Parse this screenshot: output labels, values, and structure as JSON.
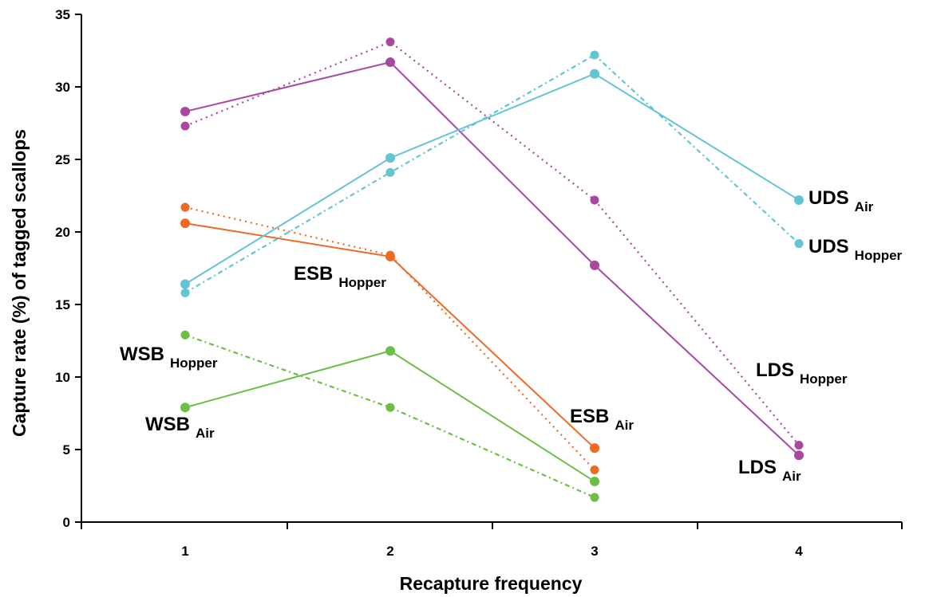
{
  "chart_data": {
    "type": "line",
    "title": "",
    "xlabel": "Recapture frequency",
    "ylabel": "Capture rate (%) of tagged scallops",
    "x": [
      1,
      2,
      3,
      4
    ],
    "x_tick_labels": [
      "1",
      "2",
      "3",
      "4"
    ],
    "ylim": [
      0,
      35
    ],
    "y_ticks": [
      0,
      5,
      10,
      15,
      20,
      25,
      30,
      35
    ],
    "grid": false,
    "legend": "none",
    "series": [
      {
        "name": "WSB Air",
        "group": "WSB",
        "sub": "Air",
        "values": [
          7.9,
          11.8,
          2.8,
          null
        ],
        "color": "#6cbf45",
        "dash": "solid"
      },
      {
        "name": "WSB Hopper",
        "group": "WSB",
        "sub": "Hopper",
        "values": [
          12.9,
          7.9,
          1.7,
          null
        ],
        "color": "#6cbf45",
        "dash": "dashdot"
      },
      {
        "name": "ESB Air",
        "group": "ESB",
        "sub": "Air",
        "values": [
          20.6,
          18.3,
          5.1,
          null
        ],
        "color": "#ee6a24",
        "dash": "solid"
      },
      {
        "name": "ESB Hopper",
        "group": "ESB",
        "sub": "Hopper",
        "values": [
          21.7,
          18.4,
          3.6,
          null
        ],
        "color": "#ee6a24",
        "dash": "dot"
      },
      {
        "name": "LDS Air",
        "group": "LDS",
        "sub": "Air",
        "values": [
          28.3,
          31.7,
          17.7,
          4.6
        ],
        "color": "#a8489f",
        "dash": "solid"
      },
      {
        "name": "LDS Hopper",
        "group": "LDS",
        "sub": "Hopper",
        "values": [
          27.3,
          33.1,
          22.2,
          5.3
        ],
        "color": "#a8489f",
        "dash": "dot"
      },
      {
        "name": "UDS Air",
        "group": "UDS",
        "sub": "Air",
        "values": [
          16.4,
          25.1,
          30.9,
          22.2
        ],
        "color": "#62c5d3",
        "dash": "solid"
      },
      {
        "name": "UDS Hopper",
        "group": "UDS",
        "sub": "Hopper",
        "values": [
          15.8,
          24.1,
          32.2,
          19.2
        ],
        "color": "#62c5d3",
        "dash": "dashdot"
      }
    ]
  }
}
